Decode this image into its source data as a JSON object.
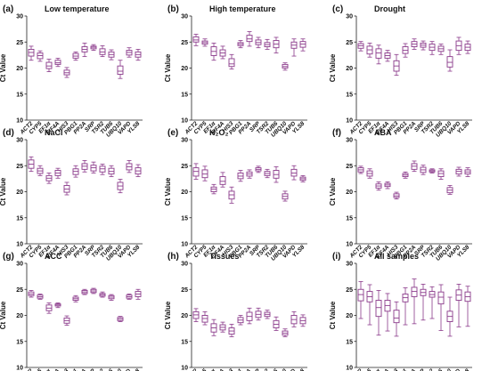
{
  "figure": {
    "ylabel": "Ct Value"
  },
  "chart_data": {
    "type": "box",
    "ylim": [
      10,
      30
    ],
    "yticks": [
      10,
      15,
      20,
      25,
      30
    ],
    "categories": [
      "ACT2",
      "CYP5",
      "EF1α",
      "EIF4A",
      "HIS3",
      "PBG1",
      "PP2A",
      "SRP",
      "TSR2",
      "TUB6",
      "UBQ10",
      "VAPD",
      "YLS8"
    ],
    "box_color": "#8b3a8b",
    "panels": [
      {
        "letter": "(a)",
        "title": "Low temperature",
        "boxes": [
          [
            21.5,
            22.3,
            23.0,
            23.6,
            24.2
          ],
          [
            21.3,
            21.8,
            22.4,
            22.9,
            23.3
          ],
          [
            19.3,
            19.9,
            20.4,
            21.1,
            21.7
          ],
          [
            20.3,
            20.7,
            21.0,
            21.5,
            21.9
          ],
          [
            18.2,
            18.7,
            19.1,
            19.6,
            20.1
          ],
          [
            21.5,
            21.9,
            22.3,
            22.8,
            23.1
          ],
          [
            22.2,
            23.1,
            23.6,
            24.1,
            24.8
          ],
          [
            23.4,
            23.7,
            24.0,
            24.2,
            24.5
          ],
          [
            22.2,
            22.6,
            23.1,
            23.7,
            24.3
          ],
          [
            21.6,
            22.1,
            22.6,
            23.1,
            23.5
          ],
          [
            18.0,
            18.8,
            19.4,
            20.4,
            21.5
          ],
          [
            22.1,
            22.5,
            23.0,
            23.4,
            23.9
          ],
          [
            21.5,
            22.1,
            22.6,
            23.1,
            23.6
          ]
        ]
      },
      {
        "letter": "(b)",
        "title": "High temperature",
        "boxes": [
          [
            24.3,
            25.0,
            25.4,
            26.0,
            26.5
          ],
          [
            24.2,
            24.6,
            24.9,
            25.2,
            25.6
          ],
          [
            21.5,
            22.4,
            23.2,
            24.1,
            24.8
          ],
          [
            21.8,
            22.3,
            22.9,
            23.5,
            24.2
          ],
          [
            19.8,
            20.3,
            20.8,
            21.8,
            22.6
          ],
          [
            23.9,
            24.3,
            24.6,
            24.9,
            25.3
          ],
          [
            24.2,
            25.1,
            25.6,
            26.3,
            27.0
          ],
          [
            23.9,
            24.5,
            24.9,
            25.4,
            25.9
          ],
          [
            23.6,
            24.1,
            24.5,
            24.9,
            25.5
          ],
          [
            22.9,
            23.9,
            24.6,
            25.3,
            25.9
          ],
          [
            19.6,
            20.0,
            20.3,
            20.7,
            21.0
          ],
          [
            22.3,
            23.8,
            24.4,
            25.0,
            25.6
          ],
          [
            23.3,
            24.0,
            24.6,
            25.1,
            25.6
          ]
        ]
      },
      {
        "letter": "(c)",
        "title": "Drought",
        "boxes": [
          [
            23.3,
            23.8,
            24.3,
            24.7,
            25.1
          ],
          [
            22.1,
            22.7,
            23.5,
            24.2,
            24.8
          ],
          [
            20.8,
            21.9,
            22.9,
            23.7,
            24.4
          ],
          [
            21.3,
            21.9,
            22.4,
            22.9,
            23.4
          ],
          [
            18.6,
            19.4,
            20.4,
            21.4,
            22.6
          ],
          [
            22.1,
            22.8,
            23.4,
            24.1,
            24.7
          ],
          [
            23.6,
            24.1,
            24.6,
            25.1,
            25.6
          ],
          [
            23.5,
            24.0,
            24.4,
            24.8,
            25.2
          ],
          [
            22.6,
            23.4,
            24.0,
            24.6,
            25.1
          ],
          [
            22.6,
            23.2,
            23.7,
            24.2,
            24.6
          ],
          [
            19.4,
            20.2,
            21.1,
            22.2,
            23.5
          ],
          [
            22.6,
            23.4,
            24.3,
            25.2,
            25.9
          ],
          [
            22.8,
            23.4,
            24.0,
            24.6,
            25.2
          ]
        ]
      },
      {
        "letter": "(d)",
        "title": "NaCl",
        "boxes": [
          [
            23.9,
            24.5,
            25.3,
            26.1,
            26.7
          ],
          [
            23.1,
            23.5,
            24.0,
            24.5,
            25.0
          ],
          [
            21.6,
            22.1,
            22.6,
            23.1,
            23.6
          ],
          [
            22.6,
            23.1,
            23.6,
            24.1,
            24.5
          ],
          [
            19.4,
            19.9,
            20.5,
            21.2,
            21.8
          ],
          [
            22.8,
            23.3,
            23.9,
            24.4,
            25.0
          ],
          [
            23.8,
            24.3,
            24.9,
            25.4,
            26.0
          ],
          [
            23.6,
            24.0,
            24.6,
            25.1,
            25.7
          ],
          [
            23.3,
            23.8,
            24.4,
            24.9,
            25.3
          ],
          [
            22.9,
            23.4,
            23.9,
            24.5,
            25.0
          ],
          [
            19.8,
            20.4,
            21.1,
            21.8,
            22.4
          ],
          [
            23.7,
            24.2,
            24.8,
            25.4,
            26.0
          ],
          [
            22.9,
            23.4,
            24.0,
            24.6,
            25.2
          ]
        ]
      },
      {
        "letter": "(e)",
        "title": "H₂O₂",
        "boxes": [
          [
            22.4,
            23.0,
            23.9,
            24.6,
            25.4
          ],
          [
            22.1,
            22.7,
            23.4,
            24.2,
            24.9
          ],
          [
            19.6,
            20.0,
            20.5,
            20.9,
            21.4
          ],
          [
            20.9,
            21.4,
            22.0,
            22.9,
            23.7
          ],
          [
            17.8,
            18.6,
            19.4,
            20.1,
            20.9
          ],
          [
            22.0,
            22.5,
            23.0,
            23.6,
            24.1
          ],
          [
            22.6,
            23.0,
            23.4,
            23.8,
            24.2
          ],
          [
            23.7,
            24.0,
            24.3,
            24.6,
            24.9
          ],
          [
            22.7,
            23.1,
            23.5,
            23.9,
            24.3
          ],
          [
            21.8,
            22.6,
            23.3,
            24.1,
            24.8
          ],
          [
            18.2,
            18.6,
            19.1,
            19.6,
            20.1
          ],
          [
            22.3,
            23.0,
            23.6,
            24.3,
            25.0
          ],
          [
            21.9,
            22.2,
            22.5,
            22.8,
            23.1
          ]
        ]
      },
      {
        "letter": "(f)",
        "title": "ABA",
        "boxes": [
          [
            23.5,
            23.8,
            24.2,
            24.6,
            24.9
          ],
          [
            22.6,
            23.0,
            23.5,
            24.0,
            24.4
          ],
          [
            20.3,
            20.7,
            21.1,
            21.5,
            21.9
          ],
          [
            20.6,
            21.0,
            21.3,
            21.6,
            21.9
          ],
          [
            18.6,
            18.9,
            19.2,
            19.6,
            19.9
          ],
          [
            22.6,
            22.9,
            23.2,
            23.5,
            23.8
          ],
          [
            23.9,
            24.3,
            24.9,
            25.4,
            25.9
          ],
          [
            23.3,
            23.7,
            24.2,
            24.7,
            25.1
          ],
          [
            23.6,
            23.8,
            24.0,
            24.2,
            24.4
          ],
          [
            22.4,
            22.9,
            23.5,
            24.0,
            24.4
          ],
          [
            19.5,
            19.8,
            20.3,
            20.8,
            21.2
          ],
          [
            23.0,
            23.4,
            23.9,
            24.3,
            24.7
          ],
          [
            22.9,
            23.4,
            23.8,
            24.2,
            24.6
          ]
        ]
      },
      {
        "letter": "(g)",
        "title": "ACC",
        "boxes": [
          [
            23.5,
            23.8,
            24.1,
            24.5,
            24.8
          ],
          [
            23.1,
            23.3,
            23.6,
            23.9,
            24.1
          ],
          [
            20.4,
            20.9,
            21.4,
            22.0,
            22.4
          ],
          [
            21.5,
            21.8,
            22.0,
            22.2,
            22.4
          ],
          [
            18.1,
            18.5,
            19.0,
            19.5,
            19.9
          ],
          [
            22.6,
            22.9,
            23.2,
            23.5,
            23.8
          ],
          [
            24.0,
            24.2,
            24.5,
            24.8,
            25.0
          ],
          [
            24.2,
            24.4,
            24.7,
            25.0,
            25.2
          ],
          [
            23.5,
            23.7,
            24.0,
            24.2,
            24.5
          ],
          [
            22.9,
            23.2,
            23.5,
            23.8,
            24.0
          ],
          [
            18.8,
            19.0,
            19.3,
            19.6,
            19.8
          ],
          [
            23.1,
            23.3,
            23.6,
            23.9,
            24.1
          ],
          [
            23.1,
            23.6,
            24.1,
            24.6,
            25.0
          ]
        ]
      },
      {
        "letter": "(h)",
        "title": "Tissues",
        "boxes": [
          [
            18.8,
            19.4,
            20.1,
            20.7,
            21.3
          ],
          [
            18.2,
            18.7,
            19.4,
            20.0,
            20.7
          ],
          [
            16.1,
            16.8,
            17.6,
            18.4,
            19.2
          ],
          [
            16.8,
            17.2,
            17.7,
            18.2,
            18.7
          ],
          [
            15.9,
            16.4,
            17.0,
            17.6,
            18.3
          ],
          [
            18.2,
            18.6,
            19.1,
            19.6,
            20.0
          ],
          [
            18.4,
            19.0,
            19.8,
            20.6,
            21.4
          ],
          [
            19.1,
            19.6,
            20.2,
            20.8,
            21.4
          ],
          [
            19.4,
            19.8,
            20.2,
            20.6,
            21.0
          ],
          [
            17.1,
            17.6,
            18.3,
            19.0,
            19.7
          ],
          [
            15.9,
            16.2,
            16.6,
            17.0,
            17.4
          ],
          [
            17.8,
            18.4,
            19.2,
            20.0,
            20.7
          ],
          [
            17.9,
            18.4,
            19.0,
            19.6,
            20.1
          ]
        ]
      },
      {
        "letter": "(i)",
        "title": "All samples",
        "boxes": [
          [
            19.4,
            22.8,
            24.0,
            25.0,
            26.5
          ],
          [
            18.2,
            22.6,
            23.6,
            24.6,
            25.9
          ],
          [
            16.2,
            19.8,
            21.5,
            22.9,
            24.8
          ],
          [
            17.0,
            20.8,
            21.9,
            22.9,
            24.2
          ],
          [
            16.0,
            18.6,
            19.5,
            21.0,
            22.6
          ],
          [
            18.2,
            22.6,
            23.4,
            24.1,
            25.3
          ],
          [
            18.4,
            23.6,
            24.6,
            25.4,
            27.0
          ],
          [
            19.1,
            23.8,
            24.4,
            25.0,
            26.0
          ],
          [
            19.4,
            23.5,
            24.0,
            24.6,
            25.5
          ],
          [
            17.1,
            22.2,
            23.5,
            24.5,
            25.9
          ],
          [
            16.0,
            18.8,
            19.8,
            20.8,
            23.5
          ],
          [
            17.8,
            22.9,
            23.9,
            24.9,
            26.0
          ],
          [
            17.9,
            22.7,
            23.6,
            24.5,
            25.6
          ]
        ]
      }
    ]
  }
}
